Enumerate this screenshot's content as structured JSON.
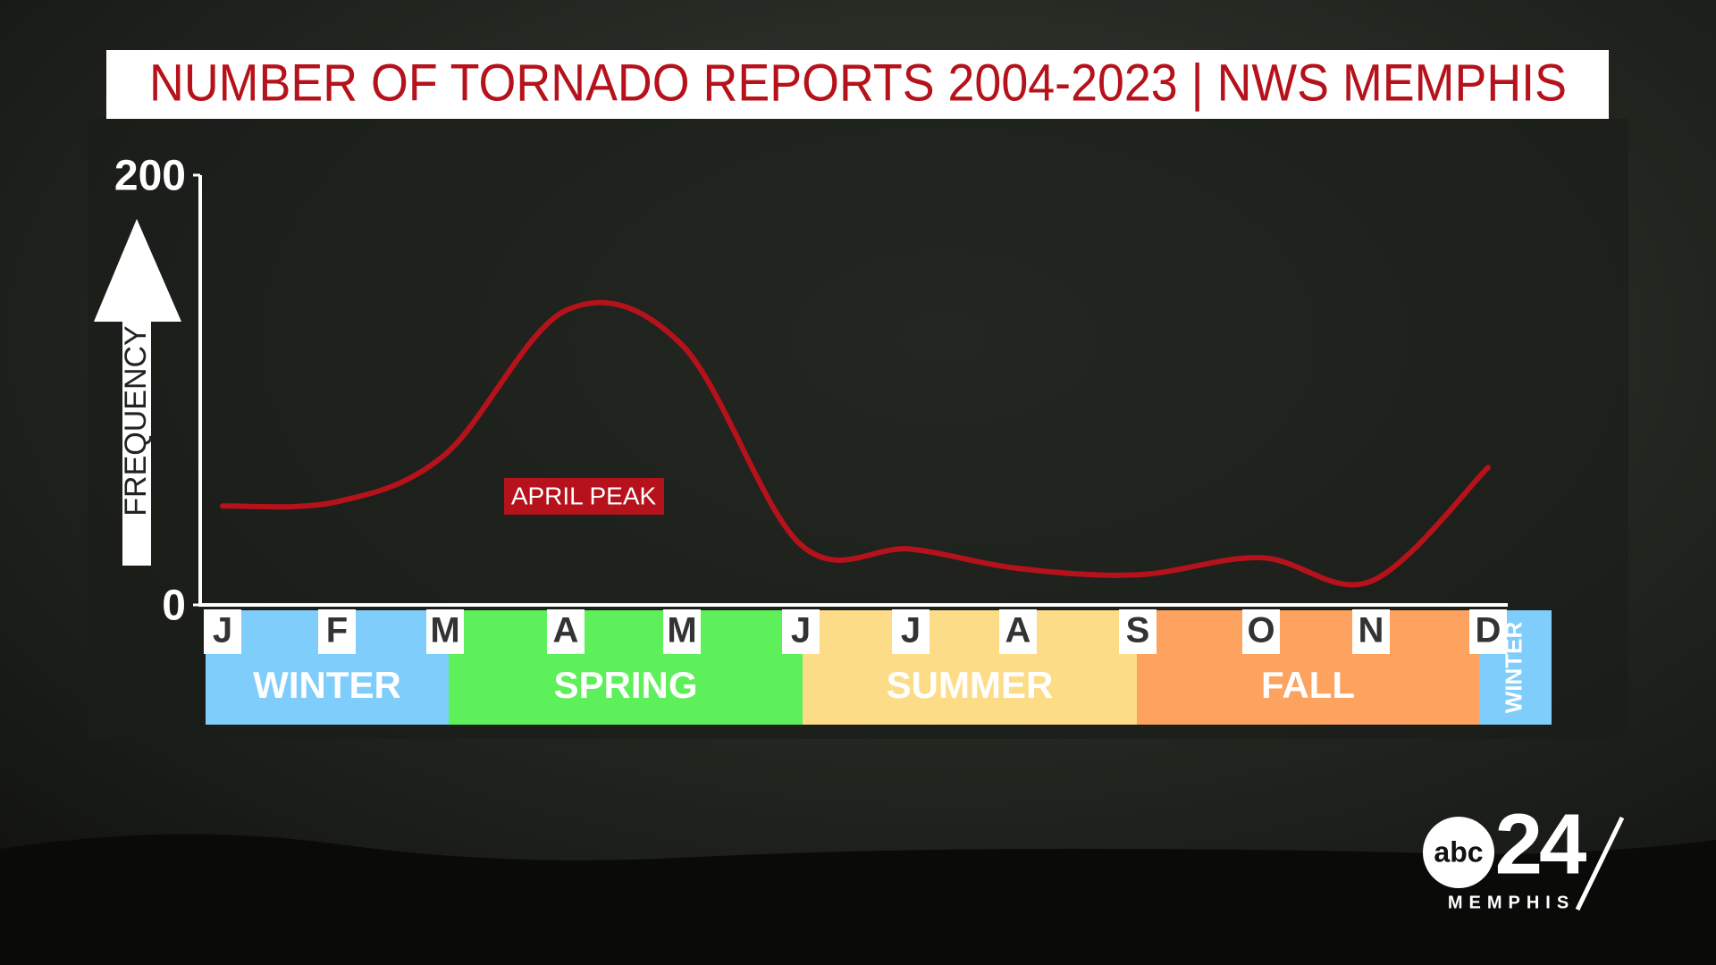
{
  "chart_data": {
    "type": "line",
    "title": "NUMBER OF TORNADO REPORTS 2004-2023 | NWS MEMPHIS",
    "y_label": "FREQUENCY",
    "annotation": "APRIL PEAK",
    "categories": [
      "J",
      "F",
      "M",
      "A",
      "M",
      "J",
      "J",
      "A",
      "S",
      "O",
      "N",
      "D"
    ],
    "values": [
      46,
      48,
      70,
      137,
      121,
      28,
      26,
      17,
      14,
      22,
      11,
      64
    ],
    "color": "#b5121b",
    "ylim": [
      0,
      200
    ],
    "yticks": [
      0,
      200
    ],
    "grid": false,
    "seasons": [
      {
        "name": "WINTER",
        "color": "#7fcdfb"
      },
      {
        "name": "SPRING",
        "color": "#5ef05a"
      },
      {
        "name": "SUMMER",
        "color": "#fddc88"
      },
      {
        "name": "FALL",
        "color": "#fda25f"
      },
      {
        "name": "WINTER",
        "color": "#7fcdfb"
      }
    ]
  },
  "logo": {
    "network": "abc",
    "channel": "24",
    "city": "MEMPHIS"
  }
}
